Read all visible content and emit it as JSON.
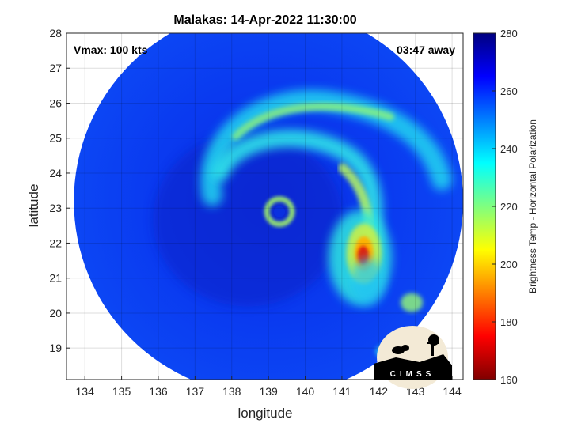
{
  "chart_data": {
    "type": "heatmap",
    "title": "Malakas: 14-Apr-2022 11:30:00",
    "xlabel": "longitude",
    "ylabel": "latitude",
    "xlim": [
      133.5,
      144.3
    ],
    "ylim": [
      18.1,
      28
    ],
    "x_ticks": [
      "134",
      "135",
      "136",
      "137",
      "138",
      "139",
      "140",
      "141",
      "142",
      "143",
      "144"
    ],
    "y_ticks": [
      "19",
      "20",
      "21",
      "22",
      "23",
      "24",
      "25",
      "26",
      "27",
      "28"
    ],
    "grid": true,
    "annotations": {
      "vmax": "Vmax: 100 kts",
      "time_away": "03:47 away"
    },
    "colorbar": {
      "label": "Brightness Temp - Horizontal Polarization",
      "range": [
        160,
        280
      ],
      "ticks": [
        "160",
        "180",
        "200",
        "220",
        "240",
        "260",
        "280"
      ],
      "colormap": "jet"
    },
    "swath": {
      "center": [
        139,
        23.2
      ],
      "radius_deg": 5.3
    },
    "features": {
      "eye": {
        "lon": 139.3,
        "lat": 22.9
      },
      "min_temp": {
        "lon": 141.6,
        "lat": 21.7,
        "value": 168
      },
      "background_temp": 270,
      "rainband_temp": 230
    }
  },
  "logo": {
    "text": "CIMSS"
  }
}
